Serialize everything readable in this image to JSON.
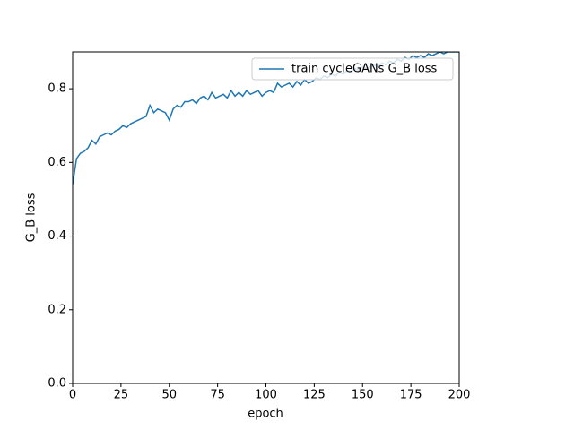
{
  "chart_data": {
    "type": "line",
    "xlabel": "epoch",
    "ylabel": "G_B loss",
    "ylabel_color": "#1f77b4",
    "x": [
      0,
      2,
      4,
      6,
      8,
      10,
      12,
      14,
      16,
      18,
      20,
      22,
      24,
      26,
      28,
      30,
      32,
      34,
      36,
      38,
      40,
      42,
      44,
      46,
      48,
      50,
      52,
      54,
      56,
      58,
      60,
      62,
      64,
      66,
      68,
      70,
      72,
      74,
      76,
      78,
      80,
      82,
      84,
      86,
      88,
      90,
      92,
      94,
      96,
      98,
      100,
      102,
      104,
      106,
      108,
      110,
      112,
      114,
      116,
      118,
      120,
      122,
      124,
      126,
      128,
      130,
      132,
      134,
      136,
      138,
      140,
      142,
      144,
      146,
      148,
      150,
      152,
      154,
      156,
      158,
      160,
      162,
      164,
      166,
      168,
      170,
      172,
      174,
      176,
      178,
      180,
      182,
      184,
      186,
      188,
      190,
      192,
      194,
      196,
      198,
      200
    ],
    "series": [
      {
        "name": "train cycleGANs G_B loss",
        "color": "#1f77b4",
        "values": [
          0.54,
          0.61,
          0.625,
          0.63,
          0.64,
          0.66,
          0.65,
          0.67,
          0.675,
          0.68,
          0.675,
          0.685,
          0.69,
          0.7,
          0.695,
          0.705,
          0.71,
          0.715,
          0.72,
          0.725,
          0.755,
          0.735,
          0.745,
          0.74,
          0.735,
          0.715,
          0.745,
          0.755,
          0.75,
          0.765,
          0.765,
          0.77,
          0.76,
          0.775,
          0.78,
          0.77,
          0.79,
          0.775,
          0.78,
          0.785,
          0.775,
          0.795,
          0.78,
          0.79,
          0.78,
          0.795,
          0.785,
          0.79,
          0.795,
          0.78,
          0.79,
          0.795,
          0.79,
          0.815,
          0.805,
          0.81,
          0.815,
          0.805,
          0.82,
          0.81,
          0.825,
          0.815,
          0.82,
          0.83,
          0.825,
          0.835,
          0.83,
          0.84,
          0.835,
          0.845,
          0.84,
          0.85,
          0.845,
          0.855,
          0.85,
          0.86,
          0.855,
          0.86,
          0.865,
          0.86,
          0.87,
          0.865,
          0.875,
          0.87,
          0.88,
          0.875,
          0.885,
          0.88,
          0.89,
          0.885,
          0.89,
          0.885,
          0.895,
          0.89,
          0.895,
          0.9,
          0.895,
          0.9,
          0.9,
          0.9,
          0.9
        ]
      }
    ],
    "xlim": [
      0,
      200
    ],
    "xticks": [
      0,
      25,
      50,
      75,
      100,
      125,
      150,
      175,
      200
    ],
    "ylim": [
      0,
      0.9
    ],
    "yticks": [
      {
        "value": 0,
        "label": "0.0"
      },
      0.2,
      0.4,
      0.6,
      0.8
    ],
    "legend": "upper right",
    "grid": false
  }
}
